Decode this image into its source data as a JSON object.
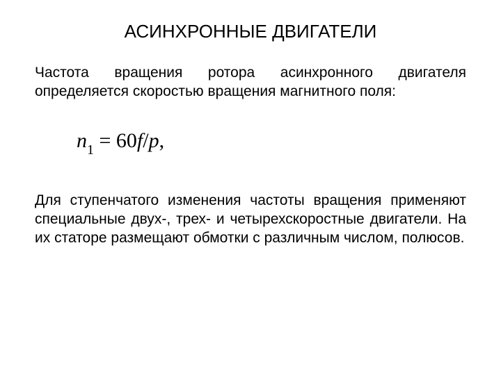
{
  "title": "АСИНХРОННЫЕ ДВИГАТЕЛИ",
  "paragraph1": "Частота вращения ротора асинхронного двигателя определяется скоростью вращения магнитного поля:",
  "formula": {
    "lhs_var": "n",
    "lhs_sub": "1",
    "eq": " = ",
    "rhs_coeff": "60",
    "rhs_num": "f",
    "rhs_slash": "/",
    "rhs_den": "p",
    "comma": ","
  },
  "paragraph2": "Для ступенчатого изменения частоты вращения применяют специальные двух-, трех- и четырехскоростные двигатели. На их статоре размещают обмотки с различным числом, полюсов.",
  "colors": {
    "background": "#ffffff",
    "text": "#000000"
  },
  "typography": {
    "title_fontsize": 26,
    "body_fontsize": 21,
    "formula_fontsize": 30,
    "font_family_body": "Arial",
    "font_family_formula": "Cambria Math"
  }
}
